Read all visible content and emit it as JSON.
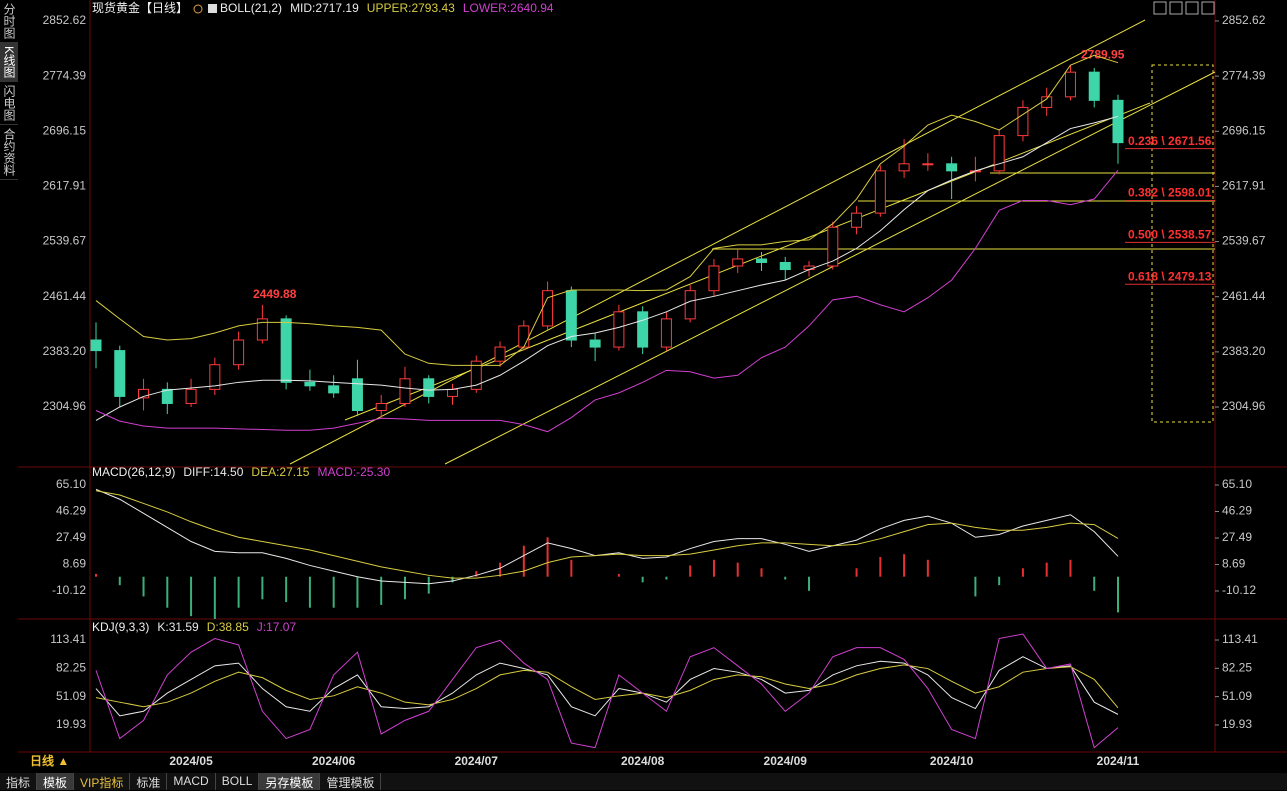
{
  "header": {
    "sidebar": [
      "分时图",
      "K线图",
      "闪电图",
      "合约资料"
    ],
    "period": "日线 ▲",
    "toolbar": [
      "指标",
      "模板",
      "VIP指标",
      "标准",
      "MACD",
      "BOLL",
      "另存模板",
      "管理模板"
    ]
  },
  "chart_data": [
    {
      "type": "candlestick",
      "title": "现货黄金【日线】",
      "indicator": "BOLL(21,2)",
      "ylim": [
        2222.7,
        2861.1
      ],
      "yticks": [
        2852.62,
        2774.39,
        2696.15,
        2617.91,
        2539.67,
        2461.44,
        {
          "value": 2383.2,
          "label": "2383.20"
        },
        2304.96
      ],
      "up_color": "#ff3b3b",
      "down_color": "#3ed5a8",
      "ohlc": [
        [
          2400,
          2425,
          2360,
          2385
        ],
        [
          2385,
          2392,
          2305,
          2320
        ],
        [
          2318,
          2345,
          2300,
          2330
        ],
        [
          2330,
          2340,
          2295,
          2310
        ],
        [
          2310,
          2345,
          2305,
          2330
        ],
        [
          2330,
          2375,
          2322,
          2365
        ],
        [
          2365,
          2412,
          2358,
          2400
        ],
        [
          2400,
          2449.88,
          2395,
          2430
        ],
        [
          2430,
          2435,
          2330,
          2340
        ],
        [
          2340,
          2358,
          2328,
          2335
        ],
        [
          2335,
          2350,
          2318,
          2325
        ],
        [
          2345,
          2372,
          2292,
          2300
        ],
        [
          2300,
          2322,
          2290,
          2310
        ],
        [
          2310,
          2362,
          2305,
          2345
        ],
        [
          2345,
          2350,
          2310,
          2320
        ],
        [
          2320,
          2338,
          2308,
          2330
        ],
        [
          2330,
          2378,
          2325,
          2370
        ],
        [
          2370,
          2398,
          2362,
          2390
        ],
        [
          2390,
          2428,
          2385,
          2420
        ],
        [
          2420,
          2483,
          2415,
          2470
        ],
        [
          2470,
          2476,
          2390,
          2400
        ],
        [
          2400,
          2410,
          2370,
          2390
        ],
        [
          2390,
          2450,
          2385,
          2440
        ],
        [
          2440,
          2448,
          2380,
          2390
        ],
        [
          2390,
          2440,
          2385,
          2430
        ],
        [
          2430,
          2478,
          2425,
          2470
        ],
        [
          2470,
          2515,
          2462,
          2505
        ],
        [
          2505,
          2528,
          2495,
          2515
        ],
        [
          2515,
          2525,
          2498,
          2510
        ],
        [
          2510,
          2518,
          2485,
          2500
        ],
        [
          2500,
          2512,
          2490,
          2505
        ],
        [
          2505,
          2568,
          2500,
          2560
        ],
        [
          2560,
          2590,
          2550,
          2580
        ],
        [
          2580,
          2648,
          2575,
          2640
        ],
        [
          2640,
          2685,
          2630,
          2650
        ],
        [
          2650,
          2665,
          2640,
          2650
        ],
        [
          2650,
          2660,
          2600,
          2640
        ],
        [
          2640,
          2660,
          2625,
          2640
        ],
        [
          2640,
          2698,
          2635,
          2690
        ],
        [
          2690,
          2740,
          2682,
          2730
        ],
        [
          2730,
          2758,
          2718,
          2745
        ],
        [
          2745,
          2789.95,
          2740,
          2780
        ],
        [
          2780,
          2786,
          2730,
          2740
        ],
        [
          2740,
          2748,
          2650,
          2680
        ]
      ],
      "series": [
        {
          "name": "MID:2717.19",
          "color": "#e8e8e8",
          "values": [
            2286,
            2305,
            2320,
            2329,
            2332,
            2335,
            2340,
            2343,
            2343,
            2342,
            2340,
            2338,
            2336,
            2332,
            2329,
            2330,
            2336,
            2350,
            2370,
            2392,
            2405,
            2410,
            2418,
            2428,
            2440,
            2455,
            2462,
            2470,
            2478,
            2485,
            2500,
            2512,
            2530,
            2555,
            2585,
            2612,
            2627,
            2640,
            2650,
            2660,
            2680,
            2700,
            2708,
            2717.19
          ]
        },
        {
          "name": "UPPER:2793.43",
          "color": "#d8cc40",
          "values": [
            2456,
            2430,
            2405,
            2400,
            2402,
            2410,
            2420,
            2425,
            2425,
            2423,
            2420,
            2418,
            2414,
            2380,
            2367,
            2364,
            2364,
            2364,
            2390,
            2460,
            2471,
            2471,
            2471,
            2470,
            2471,
            2490,
            2530,
            2535,
            2535,
            2540,
            2542,
            2565,
            2600,
            2650,
            2675,
            2705,
            2719,
            2710,
            2698,
            2720,
            2742,
            2790,
            2804,
            2793.43
          ]
        },
        {
          "name": "LOWER:2640.94",
          "color": "#d040d0",
          "values": [
            2300,
            2285,
            2278,
            2275,
            2275,
            2275,
            2274,
            2273,
            2272,
            2272,
            2275,
            2282,
            2289,
            2288,
            2286,
            2286,
            2286,
            2286,
            2280,
            2270,
            2290,
            2315,
            2325,
            2340,
            2357,
            2355,
            2346,
            2350,
            2375,
            2390,
            2420,
            2457,
            2462,
            2450,
            2440,
            2460,
            2485,
            2530,
            2584,
            2598,
            2598,
            2592,
            2600,
            2640.94
          ]
        }
      ],
      "high_labels": [
        2449.88,
        2789.95
      ],
      "fib_levels": [
        {
          "value": 2671.56,
          "label": "0.236 \\ 2671.56"
        },
        {
          "value": 2598.01,
          "label": "0.382 \\ 2598.01"
        },
        {
          "value": 2538.57,
          "label": "0.500 \\ 2538.57"
        },
        {
          "value": 2479.13,
          "label": "0.618 \\ 2479.13"
        }
      ]
    },
    {
      "type": "macd",
      "indicator": "MACD(26,12,9)",
      "ylim": [
        -29.3,
        75.75
      ],
      "yticks": [
        {
          "value": 65.1,
          "label": "65.10"
        },
        46.29,
        27.49,
        8.69,
        -10.12
      ],
      "series": [
        {
          "name": "DIFF:14.50",
          "color": "#e8e8e8",
          "values": [
            62,
            55,
            45,
            35,
            25,
            18,
            17,
            17,
            13,
            8,
            4,
            0,
            -3,
            -4,
            -5,
            -3,
            1,
            6,
            15,
            24,
            20,
            15,
            17,
            13,
            14,
            20,
            25,
            27,
            27,
            23,
            18,
            22,
            26,
            34,
            40,
            43,
            38,
            28,
            30,
            36,
            40,
            44,
            32,
            14.5
          ]
        },
        {
          "name": "DEA:27.15",
          "color": "#d8cc40",
          "values": [
            61,
            58,
            52,
            46,
            39,
            33,
            28,
            25,
            22,
            19,
            15,
            11,
            7,
            4,
            1,
            -1,
            -1,
            1,
            4,
            10,
            14,
            15,
            16,
            15,
            15,
            16,
            19,
            22,
            24,
            24,
            23,
            22,
            23,
            27,
            32,
            37,
            38,
            35,
            33,
            33,
            35,
            38,
            37,
            27.15
          ]
        },
        {
          "name": "MACD:-25.30",
          "color": "#d040d0",
          "kind": "bar",
          "up_color": "#e83030",
          "down_color": "#3bb07a",
          "values": [
            2,
            -6,
            -14,
            -22,
            -28,
            -30,
            -22,
            -16,
            -18,
            -22,
            -22,
            -22,
            -20,
            -16,
            -12,
            -4,
            4,
            10,
            22,
            28,
            12,
            0,
            2,
            -4,
            -2,
            8,
            12,
            10,
            6,
            -2,
            -10,
            0,
            6,
            14,
            16,
            12,
            0,
            -14,
            -6,
            6,
            10,
            12,
            -10,
            -25.3
          ]
        }
      ]
    },
    {
      "type": "kdj",
      "indicator": "KDJ(9,3,3)",
      "ylim": [
        -7.6,
        133.2
      ],
      "yticks": [
        113.41,
        82.25,
        51.09,
        19.93
      ],
      "categories": [
        null,
        null,
        null,
        null,
        "2024/05",
        null,
        null,
        null,
        null,
        null,
        "2024/06",
        null,
        null,
        null,
        null,
        null,
        "2024/07",
        null,
        null,
        null,
        null,
        null,
        null,
        "2024/08",
        null,
        null,
        null,
        null,
        null,
        "2024/09",
        null,
        null,
        null,
        null,
        null,
        null,
        "2024/10",
        null,
        null,
        null,
        null,
        null,
        null,
        "2024/11"
      ],
      "series": [
        {
          "name": "K:31.59",
          "color": "#e8e8e8",
          "values": [
            60,
            30,
            35,
            55,
            70,
            85,
            88,
            60,
            40,
            35,
            60,
            75,
            40,
            38,
            40,
            55,
            75,
            88,
            82,
            75,
            40,
            30,
            60,
            55,
            45,
            70,
            82,
            78,
            70,
            55,
            58,
            75,
            85,
            90,
            88,
            75,
            50,
            38,
            80,
            95,
            82,
            85,
            45,
            31.59
          ]
        },
        {
          "name": "D:38.85",
          "color": "#d8cc40",
          "values": [
            50,
            45,
            40,
            45,
            55,
            68,
            78,
            72,
            58,
            48,
            52,
            62,
            55,
            45,
            42,
            48,
            60,
            75,
            80,
            78,
            62,
            48,
            52,
            55,
            50,
            58,
            70,
            75,
            73,
            65,
            60,
            65,
            75,
            82,
            86,
            82,
            68,
            55,
            62,
            78,
            82,
            84,
            70,
            38.85
          ]
        },
        {
          "name": "J:17.07",
          "color": "#d040d0",
          "values": [
            80,
            5,
            25,
            75,
            100,
            115,
            108,
            35,
            5,
            15,
            75,
            100,
            10,
            25,
            35,
            70,
            105,
            113,
            88,
            70,
            0,
            -5,
            75,
            55,
            35,
            95,
            105,
            85,
            65,
            35,
            55,
            95,
            105,
            105,
            92,
            60,
            15,
            5,
            115,
            120,
            82,
            87,
            -5,
            17.07
          ]
        }
      ]
    }
  ]
}
